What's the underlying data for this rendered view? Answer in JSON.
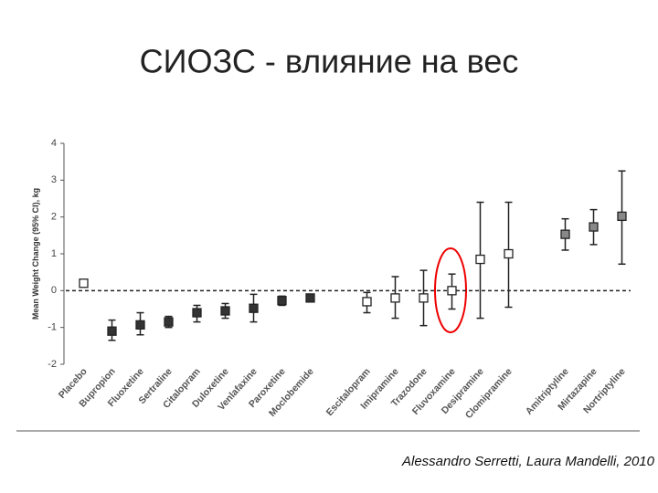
{
  "title": "СИОЗС - влияние на вес",
  "citation": "Alessandro Serretti, Laura Mandelli, 2010",
  "chart_data": {
    "type": "errorbar",
    "y_label": "Mean Weight Change (95% CI), kg",
    "categories": [
      "Placebo",
      "Bupropion",
      "Fluoxetine",
      "Sertraline",
      "Citalopram",
      "Duloxetine",
      "Venlafaxine",
      "Paroxetine",
      "Moclobemide",
      null,
      "Escitalopram",
      "Imipramine",
      "Trazodone",
      "Fluvoxamine",
      "Desipramine",
      "Clomipramine",
      null,
      "Amitriptyline",
      "Mirtazapine",
      "Nortriptyline"
    ],
    "values": [
      0.2,
      -1.1,
      -0.93,
      -0.85,
      -0.6,
      -0.55,
      -0.48,
      -0.27,
      -0.2,
      null,
      -0.3,
      -0.2,
      -0.2,
      0.0,
      0.85,
      1.0,
      null,
      1.53,
      1.73,
      2.02
    ],
    "ci_low": [
      0.12,
      -1.35,
      -1.2,
      -1.0,
      -0.85,
      -0.75,
      -0.85,
      -0.4,
      -0.3,
      null,
      -0.6,
      -0.75,
      -0.95,
      -0.5,
      -0.75,
      -0.45,
      null,
      1.1,
      1.25,
      0.72
    ],
    "ci_high": [
      0.3,
      -0.8,
      -0.6,
      -0.7,
      -0.4,
      -0.35,
      -0.1,
      -0.15,
      -0.1,
      null,
      -0.05,
      0.38,
      0.55,
      0.45,
      2.4,
      2.4,
      null,
      1.95,
      2.2,
      3.25
    ],
    "marker_colors": [
      "#ffffff",
      "#333333",
      "#333333",
      "#333333",
      "#333333",
      "#333333",
      "#333333",
      "#333333",
      "#333333",
      null,
      "#ffffff",
      "#ffffff",
      "#ffffff",
      "#ffffff",
      "#ffffff",
      "#ffffff",
      null,
      "#888888",
      "#888888",
      "#888888"
    ],
    "ylim": [
      -2,
      4
    ],
    "yticks": [
      -2,
      -1,
      0,
      1,
      2,
      3,
      4
    ]
  }
}
